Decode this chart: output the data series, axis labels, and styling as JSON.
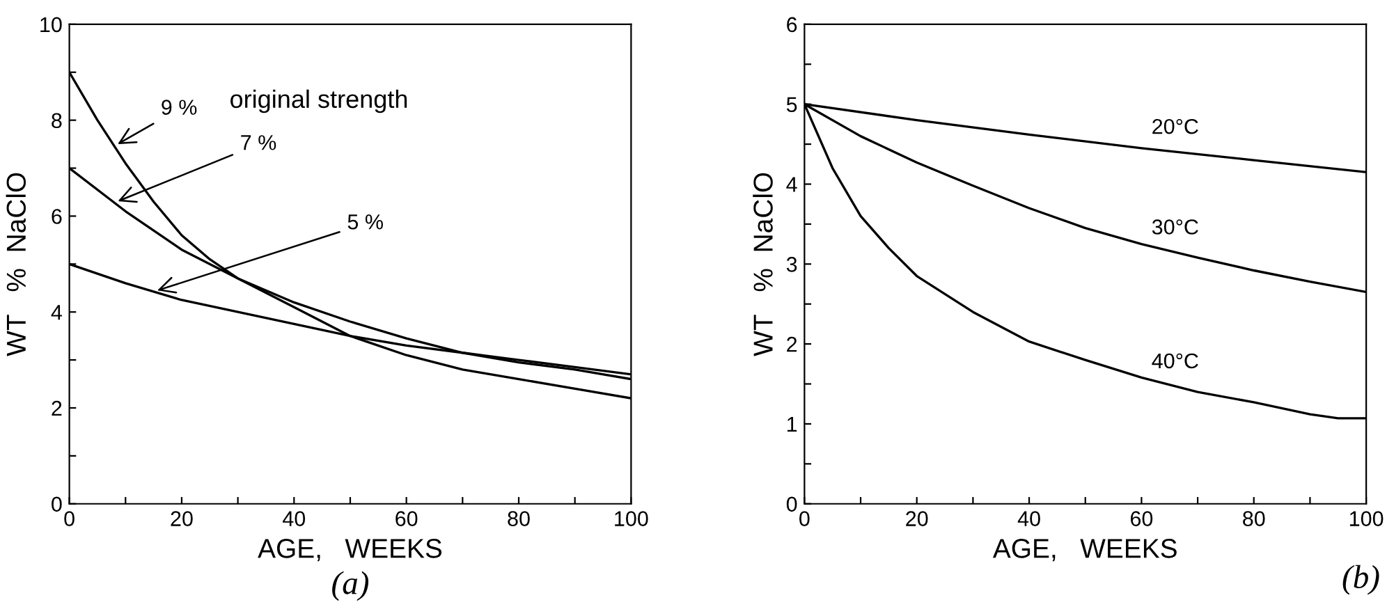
{
  "chart_data": [
    {
      "type": "line",
      "title": "(a)",
      "xlabel": "AGE,   WEEKS",
      "ylabel": "WT   %  NaClO",
      "xlim": [
        0,
        100
      ],
      "ylim": [
        0,
        10
      ],
      "xticks": [
        0,
        {
          "value": 10,
          "label": null
        },
        20,
        {
          "value": 30,
          "label": null
        },
        40,
        {
          "value": 50,
          "label": null
        },
        60,
        {
          "value": 70,
          "label": null
        },
        80,
        {
          "value": 90,
          "label": null
        },
        100
      ],
      "yticks": [
        0,
        {
          "value": 1,
          "label": null
        },
        2,
        {
          "value": 3,
          "label": null
        },
        4,
        {
          "value": 5,
          "label": null
        },
        6,
        {
          "value": 7,
          "label": null
        },
        8,
        {
          "value": 9,
          "label": null
        },
        10
      ],
      "annotations": [
        "original strength"
      ],
      "grid": false,
      "legend": false,
      "series": [
        {
          "name": "9 %",
          "color": "#000000",
          "x": [
            0,
            5,
            10,
            15,
            20,
            25,
            30,
            40,
            50,
            60,
            70,
            80,
            90,
            100
          ],
          "values": [
            9,
            8.0,
            7.1,
            6.3,
            5.6,
            5.1,
            4.7,
            4.1,
            3.5,
            3.1,
            2.8,
            2.6,
            2.4,
            2.2
          ]
        },
        {
          "name": "7 %",
          "color": "#000000",
          "x": [
            0,
            10,
            20,
            30,
            40,
            50,
            60,
            70,
            80,
            90,
            100
          ],
          "values": [
            7,
            6.1,
            5.3,
            4.7,
            4.2,
            3.8,
            3.45,
            3.15,
            2.95,
            2.8,
            2.6
          ]
        },
        {
          "name": "5 %",
          "color": "#000000",
          "x": [
            0,
            10,
            20,
            30,
            40,
            50,
            60,
            70,
            80,
            90,
            100
          ],
          "values": [
            5,
            4.6,
            4.25,
            4.0,
            3.75,
            3.5,
            3.3,
            3.15,
            3.0,
            2.85,
            2.7
          ]
        }
      ]
    },
    {
      "type": "line",
      "title": "(b)",
      "xlabel": "AGE,   WEEKS",
      "ylabel": "WT   %  NaClO",
      "xlim": [
        0,
        100
      ],
      "ylim": [
        0,
        6
      ],
      "xticks": [
        0,
        {
          "value": 10,
          "label": null
        },
        20,
        {
          "value": 30,
          "label": null
        },
        40,
        {
          "value": 50,
          "label": null
        },
        60,
        {
          "value": 70,
          "label": null
        },
        80,
        {
          "value": 90,
          "label": null
        },
        100
      ],
      "yticks": [
        0,
        {
          "value": 0.5,
          "label": null
        },
        1,
        {
          "value": 1.5,
          "label": null
        },
        2,
        {
          "value": 2.5,
          "label": null
        },
        3,
        {
          "value": 3.5,
          "label": null
        },
        4,
        {
          "value": 4.5,
          "label": null
        },
        5,
        {
          "value": 5.5,
          "label": null
        },
        6
      ],
      "grid": false,
      "legend": false,
      "series": [
        {
          "name": "20°C",
          "color": "#000000",
          "x": [
            0,
            20,
            40,
            60,
            80,
            100
          ],
          "values": [
            5,
            4.8,
            4.62,
            4.45,
            4.3,
            4.15
          ]
        },
        {
          "name": "30°C",
          "color": "#000000",
          "x": [
            0,
            10,
            20,
            30,
            40,
            50,
            60,
            70,
            80,
            90,
            100
          ],
          "values": [
            5,
            4.6,
            4.27,
            3.98,
            3.7,
            3.45,
            3.25,
            3.08,
            2.92,
            2.78,
            2.65
          ]
        },
        {
          "name": "40°C",
          "color": "#000000",
          "x": [
            0,
            5,
            10,
            15,
            20,
            30,
            40,
            50,
            60,
            70,
            80,
            90,
            95,
            100
          ],
          "values": [
            5,
            4.2,
            3.6,
            3.2,
            2.85,
            2.4,
            2.03,
            1.8,
            1.58,
            1.4,
            1.27,
            1.12,
            1.07,
            1.07
          ]
        }
      ]
    }
  ]
}
